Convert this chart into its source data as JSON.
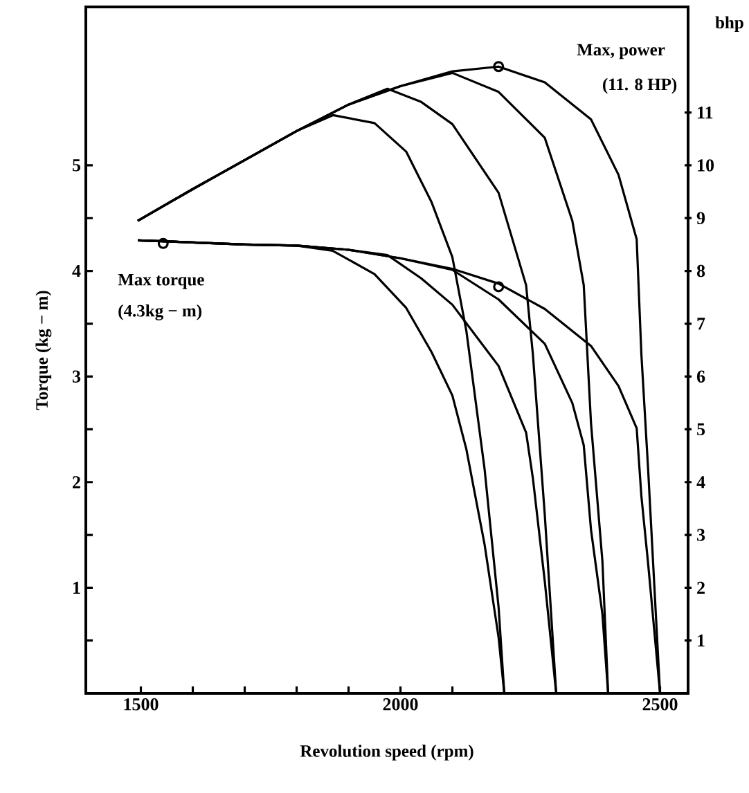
{
  "chart_data": {
    "type": "line",
    "xlabel": "Revolution speed (rpm)",
    "ylabel": "Torque (kg − m)",
    "y2label": "bhp",
    "xlim": [
      1394,
      2554
    ],
    "ylim": [
      0,
      6.5
    ],
    "y2lim": [
      0,
      13
    ],
    "xticks": [
      1500,
      {
        "value": 1600,
        "label": null
      },
      {
        "value": 1700,
        "label": null
      },
      {
        "value": 1800,
        "label": null
      },
      {
        "value": 1900,
        "label": null
      },
      2000,
      {
        "value": 2100,
        "label": null
      },
      2500
    ],
    "yticks": [
      {
        "value": 0.5,
        "label": null
      },
      1,
      {
        "value": 1.5,
        "label": null
      },
      2,
      {
        "value": 2.5,
        "label": null
      },
      3,
      {
        "value": 3.5,
        "label": null
      },
      4,
      {
        "value": 4.5,
        "label": null
      },
      5
    ],
    "y2ticks": [
      1,
      2,
      3,
      4,
      5,
      6,
      7,
      8,
      9,
      10,
      11
    ],
    "marker": "none",
    "series": [
      {
        "color": "#000000",
        "axis": "y2",
        "x": [
          1494,
          1600,
          1700,
          1800,
          1870,
          1950,
          2011,
          2060,
          2100,
          2127,
          2162,
          2189,
          2200
        ],
        "values": [
          8.95,
          9.55,
          10.1,
          10.65,
          10.95,
          10.8,
          10.26,
          9.3,
          8.26,
          6.86,
          4.25,
          1.63,
          0
        ]
      },
      {
        "color": "#000000",
        "axis": "y2",
        "x": [
          1494,
          1600,
          1700,
          1800,
          1900,
          1975,
          2040,
          2100,
          2189,
          2242,
          2255,
          2278,
          2300
        ],
        "values": [
          8.95,
          9.55,
          10.1,
          10.65,
          11.15,
          11.45,
          11.2,
          10.78,
          9.48,
          7.73,
          6.43,
          3.38,
          0
        ]
      },
      {
        "color": "#000000",
        "axis": "y2",
        "x": [
          1494,
          1600,
          1700,
          1800,
          1900,
          2000,
          2100,
          2189,
          2278,
          2331,
          2353,
          2367,
          2389,
          2400
        ],
        "values": [
          8.95,
          9.55,
          10.1,
          10.65,
          11.15,
          11.5,
          11.75,
          11.39,
          10.52,
          8.95,
          7.73,
          5.12,
          2.5,
          0
        ]
      },
      {
        "color": "#000000",
        "axis": "y2",
        "x": [
          1494,
          1600,
          1700,
          1800,
          1900,
          2000,
          2100,
          2189,
          2278,
          2367,
          2420,
          2455,
          2464,
          2477,
          2500
        ],
        "values": [
          8.95,
          9.55,
          10.1,
          10.65,
          11.15,
          11.5,
          11.78,
          11.87,
          11.57,
          10.87,
          9.82,
          8.6,
          6.43,
          4.25,
          0
        ]
      },
      {
        "color": "#000000",
        "axis": "y",
        "x": [
          1494,
          1600,
          1700,
          1800,
          1870,
          1950,
          2011,
          2060,
          2100,
          2127,
          2162,
          2189,
          2200
        ],
        "values": [
          4.29,
          4.27,
          4.25,
          4.24,
          4.19,
          3.97,
          3.65,
          3.23,
          2.82,
          2.31,
          1.41,
          0.53,
          0
        ]
      },
      {
        "color": "#000000",
        "axis": "y",
        "x": [
          1494,
          1600,
          1700,
          1800,
          1900,
          1975,
          2040,
          2100,
          2189,
          2242,
          2255,
          2278,
          2300
        ],
        "values": [
          4.29,
          4.27,
          4.25,
          4.24,
          4.2,
          4.15,
          3.93,
          3.68,
          3.1,
          2.47,
          2.04,
          1.06,
          0
        ]
      },
      {
        "color": "#000000",
        "axis": "y",
        "x": [
          1494,
          1600,
          1700,
          1800,
          1900,
          2000,
          2100,
          2189,
          2278,
          2331,
          2353,
          2367,
          2389,
          2400
        ],
        "values": [
          4.29,
          4.27,
          4.25,
          4.24,
          4.2,
          4.12,
          4.01,
          3.73,
          3.31,
          2.75,
          2.35,
          1.55,
          0.75,
          0
        ]
      },
      {
        "color": "#000000",
        "axis": "y",
        "x": [
          1494,
          1600,
          1700,
          1800,
          1900,
          2000,
          2100,
          2189,
          2278,
          2367,
          2420,
          2455,
          2464,
          2477,
          2500
        ],
        "values": [
          4.29,
          4.27,
          4.25,
          4.24,
          4.2,
          4.12,
          4.02,
          3.88,
          3.64,
          3.29,
          2.91,
          2.51,
          1.87,
          1.23,
          0
        ]
      },
      {
        "type": "scatter",
        "marker": "circle",
        "color": "#000000",
        "axis": "y2",
        "x": [
          2189
        ],
        "values": [
          11.87
        ]
      },
      {
        "type": "scatter",
        "marker": "circle",
        "color": "#000000",
        "axis": "y",
        "x": [
          1543,
          2189
        ],
        "values": [
          4.26,
          3.85
        ]
      }
    ],
    "annotations": [
      "Max, power",
      "(11. 8 HP)",
      "Max  torque",
      "(4.3kg − m)"
    ]
  }
}
